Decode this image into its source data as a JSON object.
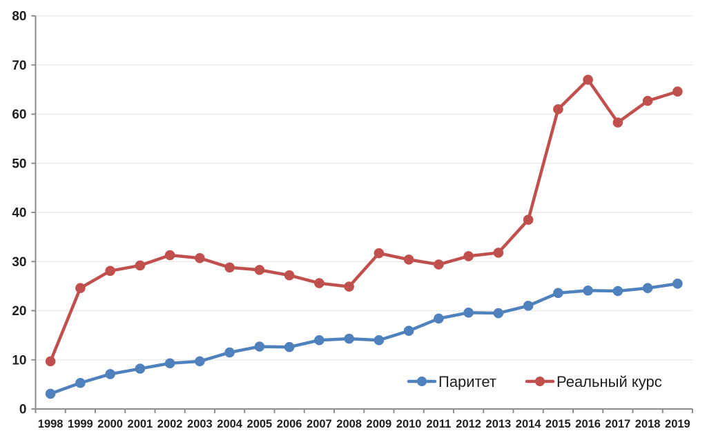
{
  "chart_data": {
    "type": "line",
    "title": "",
    "xlabel": "",
    "ylabel": "",
    "categories": [
      "1998",
      "1999",
      "2000",
      "2001",
      "2002",
      "2003",
      "2004",
      "2005",
      "2006",
      "2007",
      "2008",
      "2009",
      "2010",
      "2011",
      "2012",
      "2013",
      "2014",
      "2015",
      "2016",
      "2017",
      "2018",
      "2019"
    ],
    "series": [
      {
        "name": "Паритет",
        "color": "#4F81BD",
        "values": [
          3.1,
          5.3,
          7.1,
          8.2,
          9.3,
          9.7,
          11.5,
          12.7,
          12.6,
          14.0,
          14.3,
          14.0,
          15.9,
          18.4,
          19.6,
          19.5,
          21.0,
          23.6,
          24.1,
          24.0,
          24.6,
          25.5
        ]
      },
      {
        "name": "Реальный курс",
        "color": "#C0504D",
        "values": [
          9.7,
          24.6,
          28.1,
          29.2,
          31.3,
          30.7,
          28.8,
          28.3,
          27.2,
          25.6,
          24.9,
          31.7,
          30.4,
          29.4,
          31.1,
          31.8,
          38.5,
          61.0,
          67.0,
          58.3,
          62.7,
          64.6
        ]
      }
    ],
    "ylim": [
      0,
      80
    ],
    "ytick_step": 10,
    "yticks": [
      0,
      10,
      20,
      30,
      40,
      50,
      60,
      70,
      80
    ],
    "grid": true,
    "legend_position": "inside-bottom-right"
  },
  "styles": {
    "background": "#FFFFFF",
    "axis_color": "#8C8C8C",
    "grid_color": "#E8E8E8",
    "label_color": "#1F1F1F",
    "series1_color": "#4F81BD",
    "series2_color": "#C0504D"
  }
}
